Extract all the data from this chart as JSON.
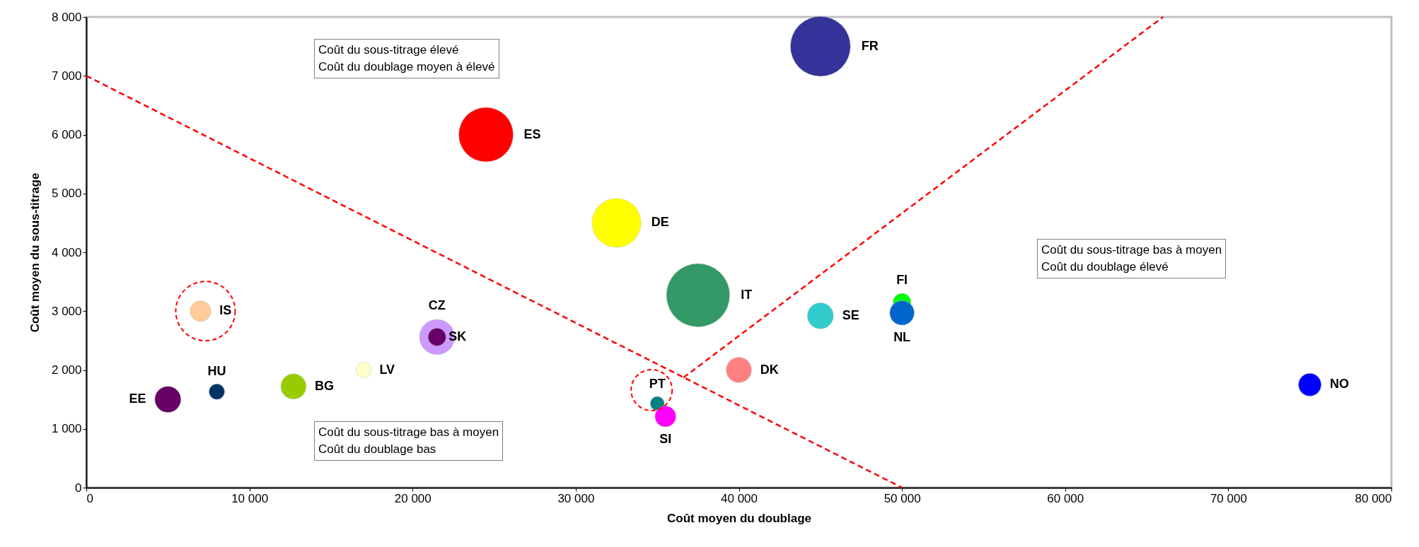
{
  "chart_data": {
    "type": "bubble",
    "xlabel": "Coût moyen du doublage",
    "ylabel": "Coût moyen du sous-titrage",
    "xlim": [
      0,
      80000
    ],
    "ylim": [
      0,
      8000
    ],
    "xticks": [
      0,
      {
        "value": 10000,
        "label": "10 000"
      },
      {
        "value": 20000,
        "label": "20 000"
      },
      {
        "value": 30000,
        "label": "30 000"
      },
      {
        "value": 40000,
        "label": "40 000"
      },
      {
        "value": 50000,
        "label": "50 000"
      },
      {
        "value": 60000,
        "label": "60 000"
      },
      {
        "value": 70000,
        "label": "70 000"
      },
      {
        "value": 80000,
        "label": "80 000"
      }
    ],
    "yticks": [
      0,
      {
        "value": 1000,
        "label": "1 000"
      },
      {
        "value": 2000,
        "label": "2 000"
      },
      {
        "value": 3000,
        "label": "3 000"
      },
      {
        "value": 4000,
        "label": "4 000"
      },
      {
        "value": 5000,
        "label": "5 000"
      },
      {
        "value": 6000,
        "label": "6 000"
      },
      {
        "value": 7000,
        "label": "7 000"
      },
      {
        "value": 8000,
        "label": "8 000"
      }
    ],
    "grid": false,
    "annotations": [
      "Coût du sous-titrage élevé\nCoût du doublage moyen à élevé",
      "Coût du sous-titrage bas à moyen\nCoût du doublage bas",
      "Coût du sous-titrage bas à moyen\nCoût du doublage élevé"
    ],
    "series": [
      {
        "type": "line",
        "color": "#ff0000",
        "line_style": "dashed",
        "x": [
          0,
          50000
        ],
        "values": [
          7000,
          0
        ]
      },
      {
        "type": "line",
        "color": "#ff0000",
        "line_style": "dashed",
        "x": [
          36600,
          66000
        ],
        "values": [
          1870,
          8000
        ]
      },
      {
        "name": "FR",
        "color": "#333399",
        "x": [
          45000
        ],
        "values": [
          7500
        ],
        "sizes": [
          0.9
        ]
      },
      {
        "name": "ES",
        "color": "#ff0000",
        "x": [
          24500
        ],
        "values": [
          6000
        ],
        "sizes": [
          0.74
        ]
      },
      {
        "name": "DE",
        "color": "#ffff00",
        "x": [
          32500
        ],
        "values": [
          4500
        ],
        "sizes": [
          0.6
        ]
      },
      {
        "name": "IT",
        "color": "#339966",
        "x": [
          37500
        ],
        "values": [
          3270
        ],
        "sizes": [
          1
        ]
      },
      {
        "name": "SE",
        "color": "#33cccc",
        "x": [
          45000
        ],
        "values": [
          2920
        ],
        "sizes": [
          0.17
        ]
      },
      {
        "name": "FI",
        "color": "#00ff00",
        "x": [
          50000
        ],
        "values": [
          3150
        ],
        "sizes": [
          0.08
        ]
      },
      {
        "name": "NL",
        "color": "#0066cc",
        "x": [
          50000
        ],
        "values": [
          2970
        ],
        "sizes": [
          0.15
        ]
      },
      {
        "name": "DK",
        "color": "#ff8080",
        "x": [
          40000
        ],
        "values": [
          2000
        ],
        "sizes": [
          0.16
        ]
      },
      {
        "name": "NO",
        "color": "#0000ff",
        "x": [
          75000
        ],
        "values": [
          1750
        ],
        "sizes": [
          0.13
        ]
      },
      {
        "name": "IS",
        "color": "#ffcc99",
        "x": [
          7000
        ],
        "values": [
          3000
        ],
        "sizes": [
          0.11
        ]
      },
      {
        "name": "CZ",
        "color": "#cc99ff",
        "x": [
          21500
        ],
        "values": [
          2560
        ],
        "sizes": [
          0.31
        ]
      },
      {
        "name": "SK",
        "color": "#660066",
        "x": [
          21500
        ],
        "values": [
          2560
        ],
        "sizes": [
          0.08
        ]
      },
      {
        "name": "LV",
        "color": "#ffffcc",
        "x": [
          17000
        ],
        "values": [
          2000
        ],
        "sizes": [
          0.06
        ]
      },
      {
        "name": "HU",
        "color": "#003366",
        "x": [
          8000
        ],
        "values": [
          1630
        ],
        "sizes": [
          0.06
        ]
      },
      {
        "name": "EE",
        "color": "#660066",
        "x": [
          5000
        ],
        "values": [
          1500
        ],
        "sizes": [
          0.17
        ]
      },
      {
        "name": "BG",
        "color": "#99cc00",
        "x": [
          12700
        ],
        "values": [
          1720
        ],
        "sizes": [
          0.16
        ]
      },
      {
        "name": "PT",
        "color": "#008080",
        "x": [
          35000
        ],
        "values": [
          1430
        ],
        "sizes": [
          0.05
        ]
      },
      {
        "name": "SI",
        "color": "#ff00ff",
        "x": [
          35500
        ],
        "values": [
          1210
        ],
        "sizes": [
          0.11
        ]
      }
    ]
  }
}
